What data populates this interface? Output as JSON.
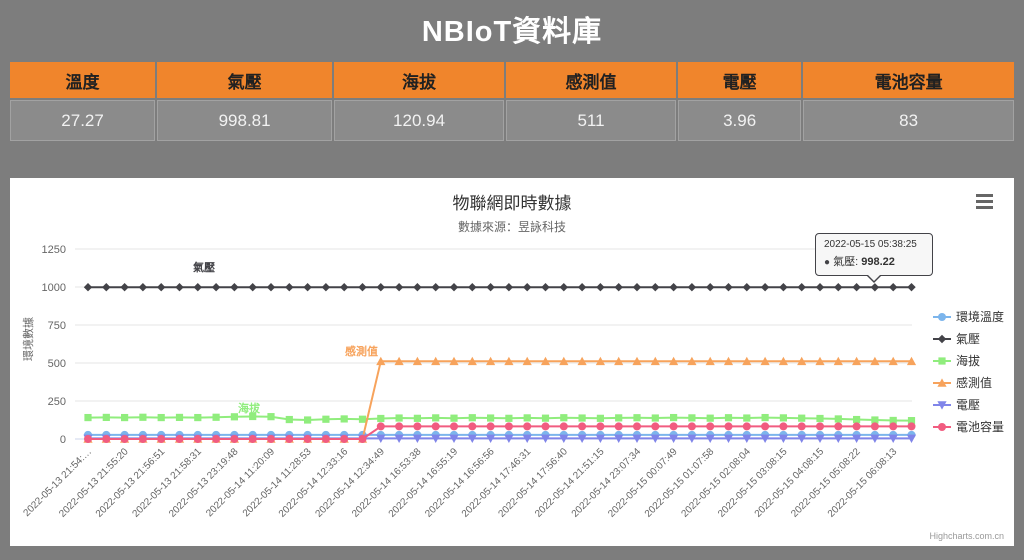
{
  "page_title": "NBIoT資料庫",
  "summary_table": {
    "headers": [
      "溫度",
      "氣壓",
      "海拔",
      "感測值",
      "電壓",
      "電池容量"
    ],
    "values": [
      "27.27",
      "998.81",
      "120.94",
      "511",
      "3.96",
      "83"
    ]
  },
  "chart": {
    "title": "物聯網即時數據",
    "subtitle": "數據來源：昱詠科技",
    "y_axis_title": "環境數據",
    "credit": "Highcharts.com.cn",
    "menu_icon": "hamburger-menu-icon",
    "tooltip": {
      "timestamp": "2022-05-15 05:38:25",
      "series_name": "氣壓",
      "value": "998.22",
      "point_index": 43
    }
  },
  "colors": {
    "accent_orange": "#f0852c",
    "page_background": "#7d7d7d",
    "panel_background": "#ffffff",
    "tooltip_border": "#434348"
  },
  "chart_data": {
    "type": "line",
    "title": "物聯網即時數據",
    "subtitle": "數據來源：昱詠科技",
    "ylabel": "環境數據",
    "ylim": [
      0,
      1250
    ],
    "y_ticks": [
      0,
      250,
      500,
      750,
      1000,
      1250
    ],
    "grid": true,
    "legend_position": "right",
    "categories": [
      "2022-05-13 21:54:…",
      "",
      "2022-05-13 21:55:20",
      "",
      "2022-05-13 21:56:51",
      "",
      "2022-05-13 21:58:31",
      "",
      "2022-05-13 23:19:48",
      "",
      "2022-05-14 11:20:09",
      "",
      "2022-05-14 11:28:53",
      "",
      "2022-05-14 12:33:16",
      "",
      "2022-05-14 12:34:49",
      "",
      "2022-05-14 16:53:38",
      "",
      "2022-05-14 16:55:19",
      "",
      "2022-05-14 16:56:56",
      "",
      "2022-05-14 17:46:31",
      "",
      "2022-05-14 17:56:40",
      "",
      "2022-05-14 21:51:15",
      "",
      "2022-05-14 23:07:34",
      "",
      "2022-05-15 00:07:49",
      "",
      "2022-05-15 01:07:58",
      "",
      "2022-05-15 02:08:04",
      "",
      "2022-05-15 03:08:15",
      "",
      "2022-05-15 04:08:15",
      "",
      "2022-05-15 05:08:22",
      "",
      "2022-05-15 06:08:13",
      ""
    ],
    "series": [
      {
        "key": "temperature",
        "name": "環境溫度",
        "color": "#7cb5ec",
        "marker": "circle",
        "values": [
          27.27,
          27.27,
          27.27,
          27.27,
          27.27,
          27.27,
          27.27,
          27.27,
          27.27,
          27.27,
          27.27,
          27.27,
          27.27,
          27.27,
          27.27,
          27.27,
          27.27,
          27.27,
          27.27,
          27.27,
          27.27,
          27.27,
          27.27,
          27.27,
          27.27,
          27.27,
          27.27,
          27.27,
          27.27,
          27.27,
          27.27,
          27.27,
          27.27,
          27.27,
          27.27,
          27.27,
          27.27,
          27.27,
          27.27,
          27.27,
          27.27,
          27.27,
          27.27,
          27.27,
          27.27,
          27.27
        ]
      },
      {
        "key": "pressure",
        "name": "氣壓",
        "color": "#434348",
        "marker": "diamond",
        "values": [
          998.5,
          998.5,
          998.5,
          998.5,
          998.5,
          998.5,
          998.5,
          998.5,
          998.5,
          998.5,
          998.5,
          998.5,
          998.5,
          998.5,
          998.5,
          998.5,
          998.5,
          998.5,
          998.5,
          998.5,
          998.5,
          998.5,
          998.5,
          998.5,
          998.5,
          998.5,
          998.5,
          998.5,
          998.5,
          998.5,
          998.5,
          998.5,
          998.5,
          998.5,
          998.5,
          998.5,
          998.5,
          998.5,
          998.5,
          998.5,
          998.5,
          998.5,
          998.5,
          998.22,
          998.5,
          998.81
        ]
      },
      {
        "key": "altitude",
        "name": "海拔",
        "color": "#90ed7d",
        "marker": "square",
        "values": [
          141,
          142,
          141,
          143,
          141,
          142,
          141,
          143,
          146,
          148,
          147,
          128,
          125,
          130,
          132,
          130,
          135,
          138,
          136,
          139,
          137,
          140,
          138,
          136,
          139,
          137,
          140,
          138,
          136,
          139,
          140,
          138,
          141,
          139,
          137,
          140,
          138,
          141,
          139,
          137,
          135,
          132,
          128,
          125,
          122,
          120.94
        ]
      },
      {
        "key": "sensor",
        "name": "感測值",
        "color": "#f7a35c",
        "marker": "triangle",
        "values": [
          0,
          0,
          0,
          0,
          0,
          0,
          0,
          0,
          0,
          0,
          0,
          0,
          0,
          0,
          0,
          0,
          511,
          511,
          511,
          511,
          511,
          511,
          511,
          511,
          511,
          511,
          511,
          511,
          511,
          511,
          511,
          511,
          511,
          511,
          511,
          511,
          511,
          511,
          511,
          511,
          511,
          511,
          511,
          511,
          511,
          511
        ]
      },
      {
        "key": "voltage",
        "name": "電壓",
        "color": "#8085e9",
        "marker": "triangle-down",
        "values": [
          3.96,
          3.96,
          3.96,
          3.96,
          3.96,
          3.96,
          3.96,
          3.96,
          3.96,
          3.96,
          3.96,
          3.96,
          3.96,
          3.96,
          3.96,
          3.96,
          3.96,
          3.96,
          3.96,
          3.96,
          3.96,
          3.96,
          3.96,
          3.96,
          3.96,
          3.96,
          3.96,
          3.96,
          3.96,
          3.96,
          3.96,
          3.96,
          3.96,
          3.96,
          3.96,
          3.96,
          3.96,
          3.96,
          3.96,
          3.96,
          3.96,
          3.96,
          3.96,
          3.96,
          3.96,
          3.96
        ]
      },
      {
        "key": "battery",
        "name": "電池容量",
        "color": "#f15c80",
        "marker": "circle",
        "values": [
          0,
          0,
          0,
          0,
          0,
          0,
          0,
          0,
          0,
          0,
          0,
          0,
          0,
          0,
          0,
          0,
          83,
          83,
          83,
          83,
          83,
          83,
          83,
          83,
          83,
          83,
          83,
          83,
          83,
          83,
          83,
          83,
          83,
          83,
          83,
          83,
          83,
          83,
          83,
          83,
          83,
          83,
          83,
          83,
          83,
          83
        ]
      }
    ],
    "series_labels": [
      {
        "key": "pressure",
        "text": "氣壓",
        "x": 183,
        "y": 93,
        "color": "#434348"
      },
      {
        "key": "altitude",
        "text": "海拔",
        "x": 228,
        "y": 234,
        "color": "#90ed7d"
      },
      {
        "key": "sensor",
        "text": "感測值",
        "x": 335,
        "y": 177,
        "color": "#f7a35c"
      }
    ]
  }
}
